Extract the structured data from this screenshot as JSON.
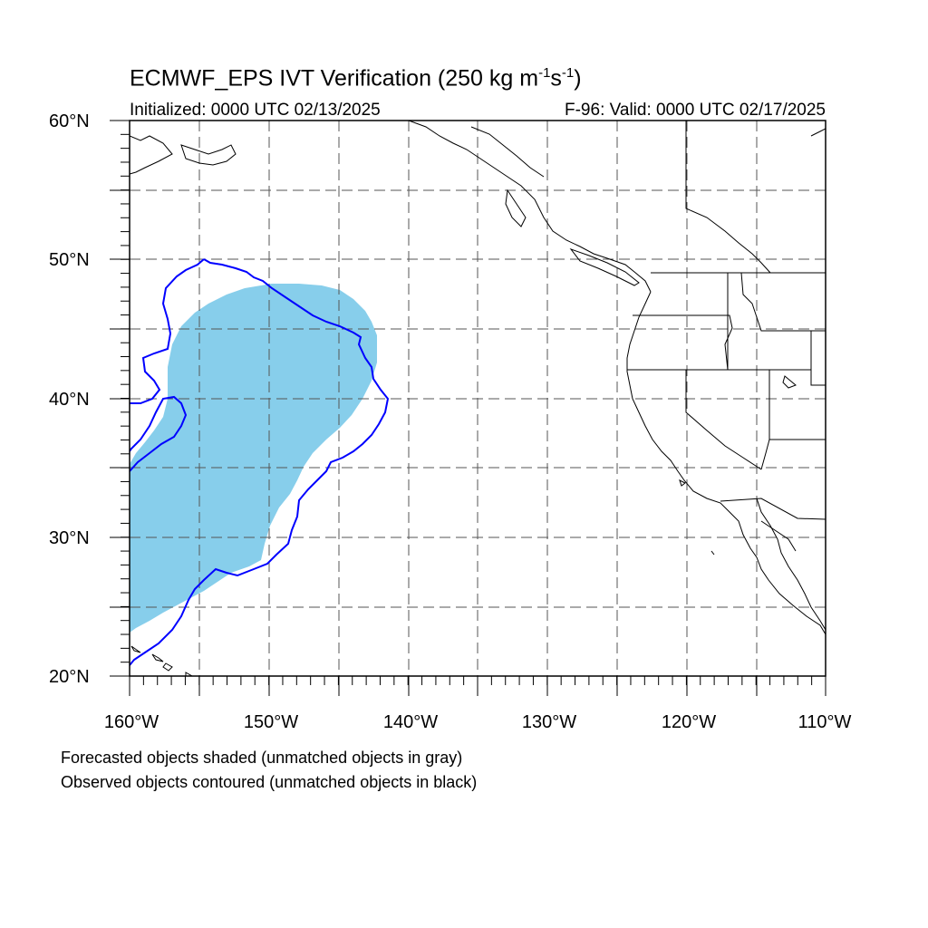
{
  "title": {
    "main_prefix": "ECMWF_EPS IVT Verification (250 kg m",
    "sup1": "-1",
    "mid": "s",
    "sup2": "-1",
    "suffix": ")"
  },
  "initialized": "Initialized: 0000 UTC 02/13/2025",
  "valid": "F-96: Valid: 0000 UTC 02/17/2025",
  "lat_labels": [
    "60°N",
    "50°N",
    "40°N",
    "30°N",
    "20°N"
  ],
  "lon_labels": [
    "160°W",
    "150°W",
    "140°W",
    "130°W",
    "120°W",
    "110°W"
  ],
  "notes": {
    "forecast": "Forecasted objects shaded (unmatched objects in gray)",
    "observed": "Observed objects contoured (unmatched objects in black)"
  },
  "colors": {
    "forecast_fill": "#87ceeb",
    "observed_contour": "#0000ff",
    "coastline": "#000000",
    "grid": "#555555"
  }
}
